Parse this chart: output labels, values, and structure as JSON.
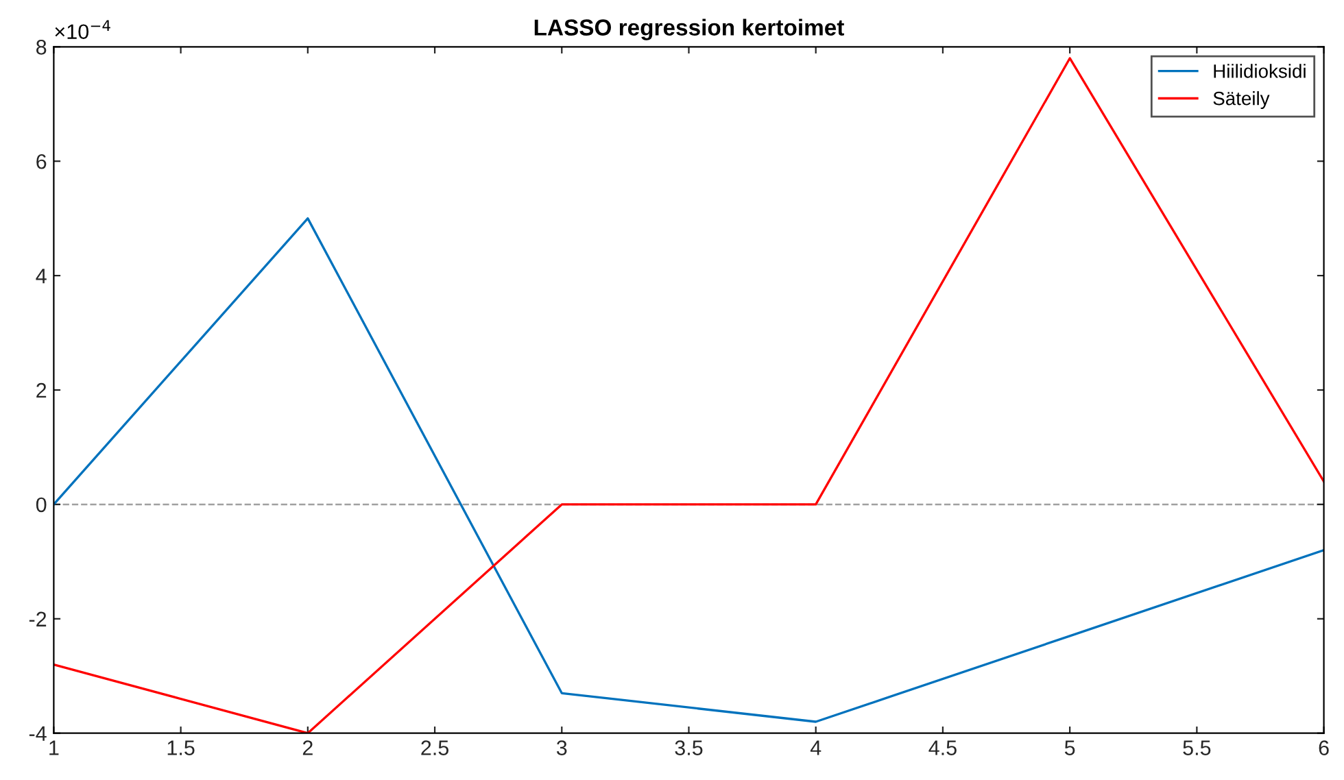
{
  "chart_data": {
    "type": "line",
    "title": "LASSO regression kertoimet",
    "x": [
      1,
      2,
      3,
      4,
      5,
      6
    ],
    "series": [
      {
        "name": "Hiilidioksidi",
        "color": "#0072bd",
        "values": [
          0.0,
          5.0,
          -3.3,
          -3.8,
          -2.3,
          -0.8
        ]
      },
      {
        "name": "Säteily",
        "color": "#ff0000",
        "values": [
          -2.8,
          -4.0,
          0.0,
          0.0,
          7.8,
          0.4
        ]
      }
    ],
    "xlim": [
      1,
      6
    ],
    "xticks": [
      1,
      1.5,
      2,
      2.5,
      3,
      3.5,
      4,
      4.5,
      5,
      5.5,
      6
    ],
    "ylim": [
      -4,
      8
    ],
    "yticks": [
      -4,
      -2,
      0,
      2,
      4,
      6,
      8
    ],
    "annotations": [
      "×10$^{−4}$"
    ],
    "ref_lines": [
      {
        "axis": "y",
        "value": 0,
        "color": "#a0a0a0",
        "line_style": "dashed"
      }
    ],
    "grid": false,
    "legend": "top right",
    "marker": "none",
    "line_style": "solid"
  }
}
